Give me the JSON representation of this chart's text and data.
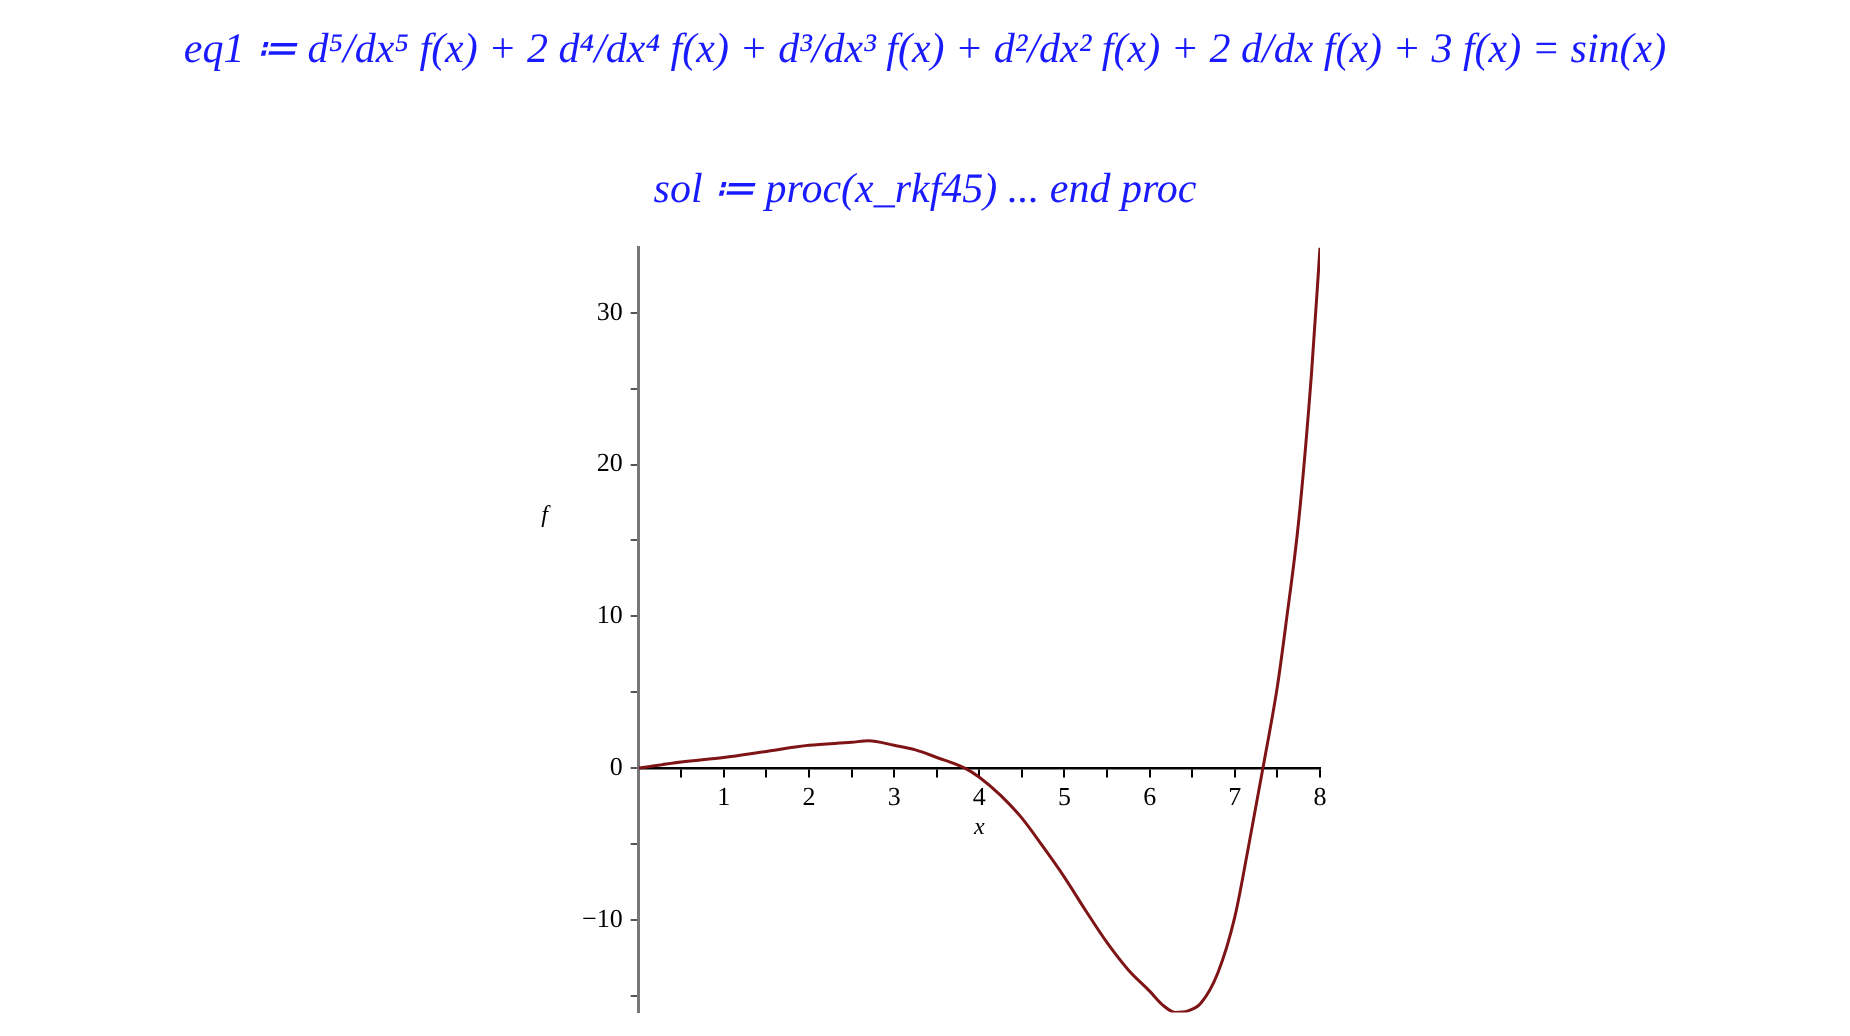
{
  "chart_data": {
    "type": "line",
    "title": "eq1 ≔ d⁵/dx⁵ f(x) + 2 d⁴/dx⁴ f(x) + d³/dx³ f(x) + d²/dx² f(x) + 2 d/dx f(x) + 3 f(x) = sin(x)",
    "subtitle": "sol ≔ proc(x_rkf45) ... end proc",
    "xlabel": "x",
    "ylabel": "f",
    "series": [
      {
        "color": "#7f1416",
        "x": [
          0,
          0.5,
          1,
          1.5,
          2,
          2.5,
          2.7,
          3,
          3.25,
          3.5,
          3.83,
          4,
          4.25,
          4.5,
          4.75,
          5,
          5.25,
          5.5,
          5.75,
          6,
          6.15,
          6.3,
          6.45,
          6.6,
          6.8,
          7,
          7.15,
          7.33,
          7.5,
          7.6,
          7.75,
          7.9,
          8
        ],
        "values": [
          0,
          0.4,
          0.7,
          1.1,
          1.5,
          1.7,
          1.8,
          1.5,
          1.2,
          0.7,
          0,
          -0.6,
          -1.8,
          -3.3,
          -5.2,
          -7.2,
          -9.4,
          -11.5,
          -13.3,
          -14.7,
          -15.6,
          -16.1,
          -16,
          -15.5,
          -13.5,
          -9.8,
          -5.5,
          0,
          5.4,
          9.5,
          16.3,
          26,
          34.3
        ]
      }
    ],
    "xlim": [
      0,
      8
    ],
    "xticks": [
      {
        "value": 0,
        "label": null
      },
      {
        "value": 0.5,
        "label": null
      },
      1,
      {
        "value": 1.5,
        "label": null
      },
      2,
      {
        "value": 2.5,
        "label": null
      },
      3,
      {
        "value": 3.5,
        "label": null
      },
      4,
      {
        "value": 4.5,
        "label": null
      },
      5,
      {
        "value": 5.5,
        "label": null
      },
      6,
      {
        "value": 6.5,
        "label": null
      },
      7,
      {
        "value": 7.5,
        "label": null
      },
      8
    ],
    "ylim": [
      -16.1,
      34.3
    ],
    "yticks": [
      {
        "value": -15,
        "label": null
      },
      -10,
      {
        "value": -5,
        "label": null
      },
      0,
      {
        "value": 5,
        "label": null
      },
      10,
      {
        "value": 15,
        "label": null
      },
      20,
      {
        "value": 25,
        "label": null
      },
      30
    ],
    "grid": false,
    "legend": false,
    "marker": "none",
    "line_style": "solid"
  }
}
